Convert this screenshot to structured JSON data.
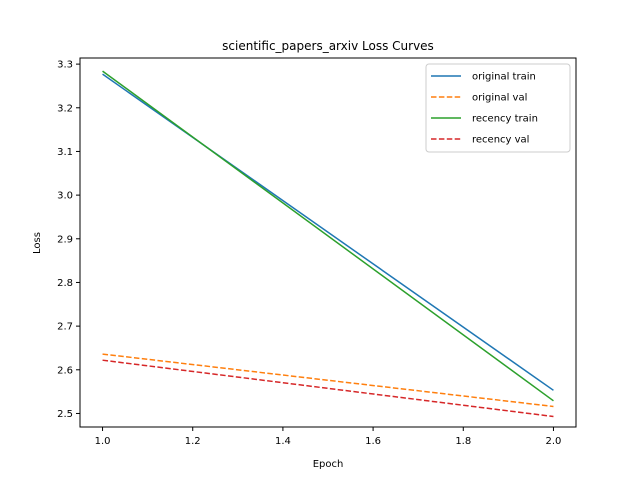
{
  "chart_data": {
    "type": "line",
    "title": "scientific_papers_arxiv Loss Curves",
    "xlabel": "Epoch",
    "ylabel": "Loss",
    "x": [
      1.0,
      2.0
    ],
    "xlim": [
      0.95,
      2.05
    ],
    "ylim": [
      2.469,
      3.314
    ],
    "xticks": [
      1.0,
      1.2,
      1.4,
      1.6,
      1.8,
      2.0
    ],
    "xtick_labels": [
      "1.0",
      "1.2",
      "1.4",
      "1.6",
      "1.8",
      "2.0"
    ],
    "yticks": [
      2.5,
      2.6,
      2.7,
      2.8,
      2.9,
      3.0,
      3.1,
      3.2,
      3.3
    ],
    "ytick_labels": [
      "2.5",
      "2.6",
      "2.7",
      "2.8",
      "2.9",
      "3.0",
      "3.1",
      "3.2",
      "3.3"
    ],
    "grid": false,
    "legend_position": "top-right",
    "series": [
      {
        "name": "original train",
        "values": [
          3.277,
          2.553
        ],
        "color": "#1f77b4",
        "style": "solid"
      },
      {
        "name": "original val",
        "values": [
          2.636,
          2.516
        ],
        "color": "#ff7f0e",
        "style": "dashed"
      },
      {
        "name": "recency train",
        "values": [
          3.284,
          2.529
        ],
        "color": "#2ca02c",
        "style": "solid"
      },
      {
        "name": "recency val",
        "values": [
          2.622,
          2.493
        ],
        "color": "#d62728",
        "style": "dashed"
      }
    ]
  }
}
